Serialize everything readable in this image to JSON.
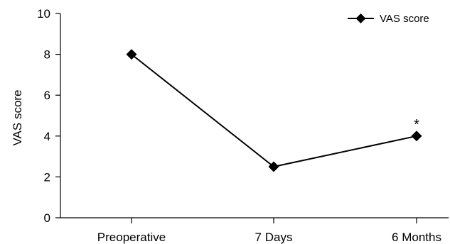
{
  "chart_data": {
    "type": "line",
    "categories": [
      "Preoperative",
      "7 Days",
      "6 Months"
    ],
    "series": [
      {
        "name": "VAS score",
        "values": [
          8,
          2.5,
          4
        ]
      }
    ],
    "ylabel": "VAS score",
    "xlabel": "",
    "ylim": [
      0,
      10
    ],
    "yticks": [
      0,
      2,
      4,
      6,
      8,
      10
    ],
    "yticks_labels": [
      "0",
      "2",
      "4",
      "6",
      "8",
      "10"
    ],
    "legend": "top-right",
    "grid": false,
    "annotations": [
      {
        "category_index": 2,
        "text": "*"
      }
    ],
    "colors": {
      "line": "#000000",
      "marker": "#000000",
      "axis": "#000000"
    },
    "marker": "diamond"
  }
}
